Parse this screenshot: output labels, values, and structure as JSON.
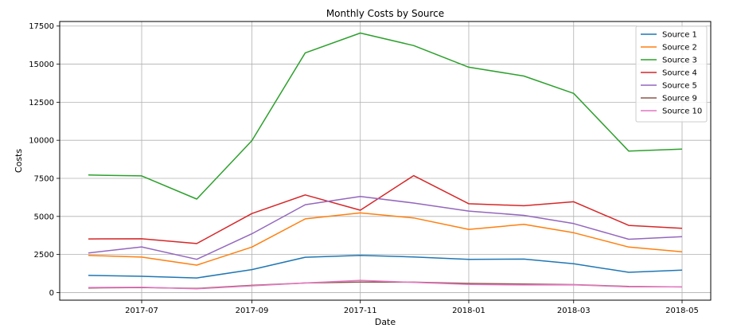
{
  "chart_data": {
    "type": "line",
    "title": "Monthly Costs by Source",
    "xlabel": "Date",
    "ylabel": "Costs",
    "grid": true,
    "legend_position": "top-right",
    "x": [
      "2017-06-01",
      "2017-07-01",
      "2017-08-01",
      "2017-09-01",
      "2017-10-01",
      "2017-11-01",
      "2017-12-01",
      "2018-01-01",
      "2018-02-01",
      "2018-03-01",
      "2018-04-01",
      "2018-05-01"
    ],
    "x_ticks": [
      "2017-07",
      "2017-09",
      "2017-11",
      "2018-01",
      "2018-03",
      "2018-05"
    ],
    "y_ticks": [
      0,
      2500,
      5000,
      7500,
      10000,
      12500,
      15000,
      17500
    ],
    "ylim": [
      -500,
      17800
    ],
    "series": [
      {
        "name": "Source 1",
        "color": "#1f77b4",
        "values": [
          1125,
          1070,
          960,
          1510,
          2320,
          2440,
          2340,
          2180,
          2200,
          1890,
          1330,
          1470
        ]
      },
      {
        "name": "Source 2",
        "color": "#ff7f0e",
        "values": [
          2440,
          2330,
          1800,
          2990,
          4840,
          5230,
          4900,
          4150,
          4480,
          3930,
          2990,
          2680
        ]
      },
      {
        "name": "Source 3",
        "color": "#2ca02c",
        "values": [
          7720,
          7660,
          6140,
          9980,
          15740,
          17040,
          16220,
          14800,
          14220,
          13080,
          9290,
          9420
        ]
      },
      {
        "name": "Source 4",
        "color": "#d62728",
        "values": [
          3520,
          3530,
          3220,
          5190,
          6410,
          5410,
          7680,
          5830,
          5700,
          5960,
          4410,
          4220
        ]
      },
      {
        "name": "Source 5",
        "color": "#9467bd",
        "values": [
          2600,
          3000,
          2180,
          3860,
          5770,
          6310,
          5880,
          5350,
          5070,
          4530,
          3500,
          3670
        ]
      },
      {
        "name": "Source 9",
        "color": "#8c564b",
        "values": [
          300,
          330,
          270,
          470,
          630,
          690,
          680,
          600,
          560,
          520,
          400,
          370
        ]
      },
      {
        "name": "Source 10",
        "color": "#e377c2",
        "values": [
          330,
          350,
          250,
          440,
          630,
          800,
          670,
          530,
          500,
          510,
          380,
          380
        ]
      }
    ]
  }
}
